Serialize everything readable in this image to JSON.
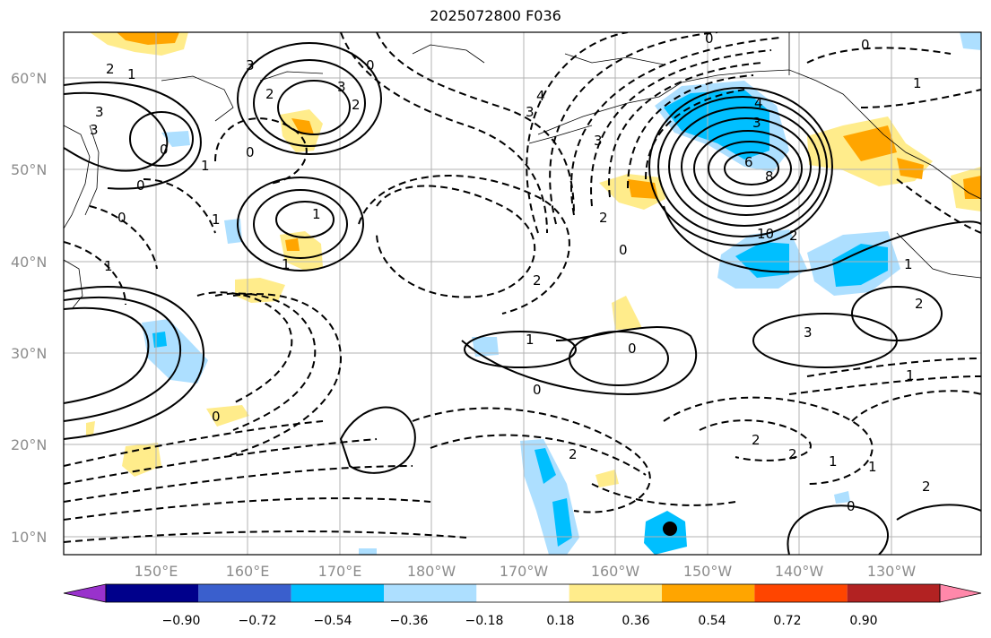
{
  "title": "2025072800 F036",
  "lat_labels": [
    "60°N",
    "50°N",
    "40°N",
    "30°N",
    "20°N",
    "10°N"
  ],
  "lon_labels": [
    "150°E",
    "160°E",
    "170°E",
    "180°W",
    "170°W",
    "160°W",
    "150°W",
    "140°W",
    "130°W"
  ],
  "colorbar": {
    "colors": [
      "#9932CC",
      "#00008B",
      "#3A5FCD",
      "#00BFFF",
      "#ADDFFF",
      "#FFFFFF",
      "#FFEC8B",
      "#FFA500",
      "#FF4500",
      "#B22222",
      "#FF88AA"
    ],
    "tick_labels": [
      "−0.90",
      "−0.72",
      "−0.54",
      "−0.36",
      "−0.18",
      "0.18",
      "0.36",
      "0.54",
      "0.72",
      "0.90"
    ]
  },
  "contour_labels": [
    "2",
    "1",
    "3",
    "3",
    "0",
    "0",
    "2",
    "3",
    "1",
    "2",
    "3",
    "0",
    "1",
    "0",
    "1",
    "1",
    "0",
    "2",
    "4",
    "3",
    "0",
    "2",
    "3",
    "1",
    "2",
    "3",
    "4",
    "3",
    "6",
    "8",
    "10",
    "2",
    "0",
    "0",
    "1",
    "2",
    "1",
    "1",
    "0",
    "2",
    "1",
    "2",
    "2",
    "1",
    "0",
    "0",
    "0",
    "1"
  ],
  "colors": {
    "line": "#000000",
    "grid": "#b3b3b3",
    "tick_text": "#8c8c8c"
  },
  "marker": {
    "name": "black-dot"
  }
}
